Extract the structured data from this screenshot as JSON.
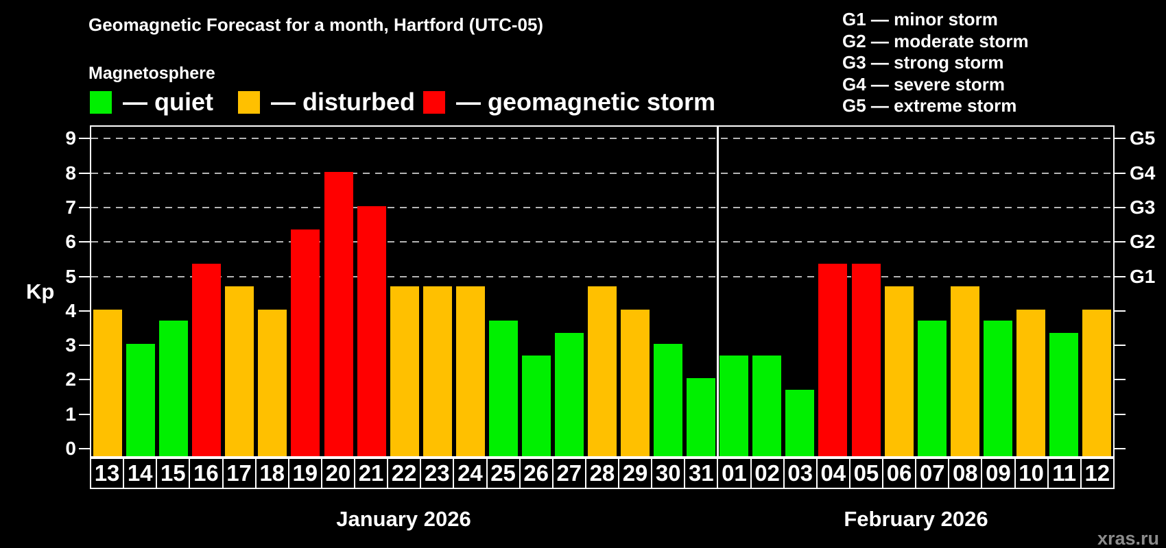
{
  "header": {
    "title": "Geomagnetic Forecast for a month, Hartford (UTC-05)",
    "subtitle": "Magnetosphere"
  },
  "legend": [
    {
      "key": "quiet",
      "label": "— quiet",
      "color": "#00f000"
    },
    {
      "key": "disturbed",
      "label": "— disturbed",
      "color": "#ffc000"
    },
    {
      "key": "storm",
      "label": "— geomagnetic storm",
      "color": "#ff0000"
    }
  ],
  "g_legend": [
    "G1 — minor storm",
    "G2 — moderate storm",
    "G3 — strong storm",
    "G4 — severe storm",
    "G5 — extreme storm"
  ],
  "watermark": "xras.ru",
  "chart_data": {
    "type": "bar",
    "ylabel": "Kp",
    "ylim": [
      0,
      9
    ],
    "yticks": [
      0,
      1,
      2,
      3,
      4,
      5,
      6,
      7,
      8,
      9
    ],
    "grid": "dashed-horizontal",
    "grid_levels_kp": [
      5,
      6,
      7,
      8,
      9
    ],
    "right_axis": [
      {
        "label": "G1",
        "kp": 5
      },
      {
        "label": "G2",
        "kp": 6
      },
      {
        "label": "G3",
        "kp": 7
      },
      {
        "label": "G4",
        "kp": 8
      },
      {
        "label": "G5",
        "kp": 9
      }
    ],
    "month_separator": true,
    "months": [
      {
        "name": "January 2026",
        "days": [
          {
            "day": "13",
            "kp": 4.0,
            "status": "disturbed"
          },
          {
            "day": "14",
            "kp": 3.0,
            "status": "quiet"
          },
          {
            "day": "15",
            "kp": 3.67,
            "status": "quiet"
          },
          {
            "day": "16",
            "kp": 5.33,
            "status": "storm"
          },
          {
            "day": "17",
            "kp": 4.67,
            "status": "disturbed"
          },
          {
            "day": "18",
            "kp": 4.0,
            "status": "disturbed"
          },
          {
            "day": "19",
            "kp": 6.33,
            "status": "storm"
          },
          {
            "day": "20",
            "kp": 8.0,
            "status": "storm"
          },
          {
            "day": "21",
            "kp": 7.0,
            "status": "storm"
          },
          {
            "day": "22",
            "kp": 4.67,
            "status": "disturbed"
          },
          {
            "day": "23",
            "kp": 4.67,
            "status": "disturbed"
          },
          {
            "day": "24",
            "kp": 4.67,
            "status": "disturbed"
          },
          {
            "day": "25",
            "kp": 3.67,
            "status": "quiet"
          },
          {
            "day": "26",
            "kp": 2.67,
            "status": "quiet"
          },
          {
            "day": "27",
            "kp": 3.33,
            "status": "quiet"
          },
          {
            "day": "28",
            "kp": 4.67,
            "status": "disturbed"
          },
          {
            "day": "29",
            "kp": 4.0,
            "status": "disturbed"
          },
          {
            "day": "30",
            "kp": 3.0,
            "status": "quiet"
          },
          {
            "day": "31",
            "kp": 2.0,
            "status": "quiet"
          }
        ]
      },
      {
        "name": "February 2026",
        "days": [
          {
            "day": "01",
            "kp": 2.67,
            "status": "quiet"
          },
          {
            "day": "02",
            "kp": 2.67,
            "status": "quiet"
          },
          {
            "day": "03",
            "kp": 1.67,
            "status": "quiet"
          },
          {
            "day": "04",
            "kp": 5.33,
            "status": "storm"
          },
          {
            "day": "05",
            "kp": 5.33,
            "status": "storm"
          },
          {
            "day": "06",
            "kp": 4.67,
            "status": "disturbed"
          },
          {
            "day": "07",
            "kp": 3.67,
            "status": "quiet"
          },
          {
            "day": "08",
            "kp": 4.67,
            "status": "disturbed"
          },
          {
            "day": "09",
            "kp": 3.67,
            "status": "quiet"
          },
          {
            "day": "10",
            "kp": 4.0,
            "status": "disturbed"
          },
          {
            "day": "11",
            "kp": 3.33,
            "status": "quiet"
          },
          {
            "day": "12",
            "kp": 4.0,
            "status": "disturbed"
          }
        ]
      }
    ]
  }
}
